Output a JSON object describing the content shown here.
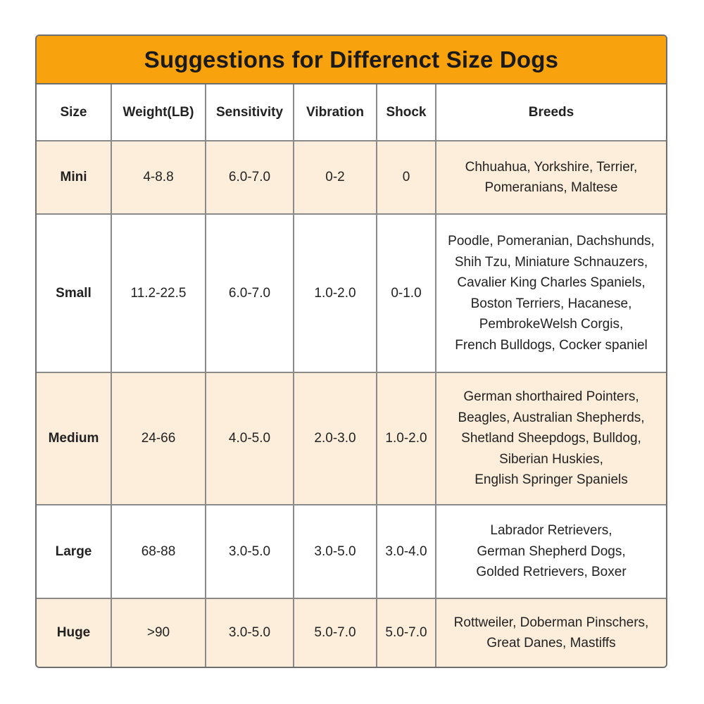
{
  "title": "Suggestions for Differenct Size Dogs",
  "colors": {
    "title_background": "#f8a20e",
    "shaded_row": "#fdeedb",
    "border": "#8a8a8a"
  },
  "headers": [
    "Size",
    "Weight(LB)",
    "Sensitivity",
    "Vibration",
    "Shock",
    "Breeds"
  ],
  "rows": [
    {
      "size": "Mini",
      "weight": "4-8.8",
      "sensitivity": "6.0-7.0",
      "vibration": "0-2",
      "shock": "0",
      "breeds": [
        "Chhuahua, Yorkshire, Terrier,",
        "Pomeranians, Maltese"
      ]
    },
    {
      "size": "Small",
      "weight": "11.2-22.5",
      "sensitivity": "6.0-7.0",
      "vibration": "1.0-2.0",
      "shock": "0-1.0",
      "breeds": [
        "Poodle, Pomeranian, Dachshunds,",
        "Shih Tzu, Miniature Schnauzers,",
        "Cavalier King Charles Spaniels,",
        "Boston Terriers, Hacanese,",
        "PembrokeWelsh Corgis,",
        "French Bulldogs, Cocker spaniel"
      ]
    },
    {
      "size": "Medium",
      "weight": "24-66",
      "sensitivity": "4.0-5.0",
      "vibration": "2.0-3.0",
      "shock": "1.0-2.0",
      "breeds": [
        "German shorthaired Pointers,",
        "Beagles, Australian Shepherds,",
        "Shetland Sheepdogs, Bulldog,",
        "Siberian Huskies,",
        "English Springer Spaniels"
      ]
    },
    {
      "size": "Large",
      "weight": "68-88",
      "sensitivity": "3.0-5.0",
      "vibration": "3.0-5.0",
      "shock": "3.0-4.0",
      "breeds": [
        "Labrador Retrievers,",
        "German Shepherd Dogs,",
        "Golded Retrievers, Boxer"
      ]
    },
    {
      "size": "Huge",
      "weight": ">90",
      "sensitivity": "3.0-5.0",
      "vibration": "5.0-7.0",
      "shock": "5.0-7.0",
      "breeds": [
        "Rottweiler, Doberman Pinschers,",
        "Great Danes, Mastiffs"
      ]
    }
  ]
}
